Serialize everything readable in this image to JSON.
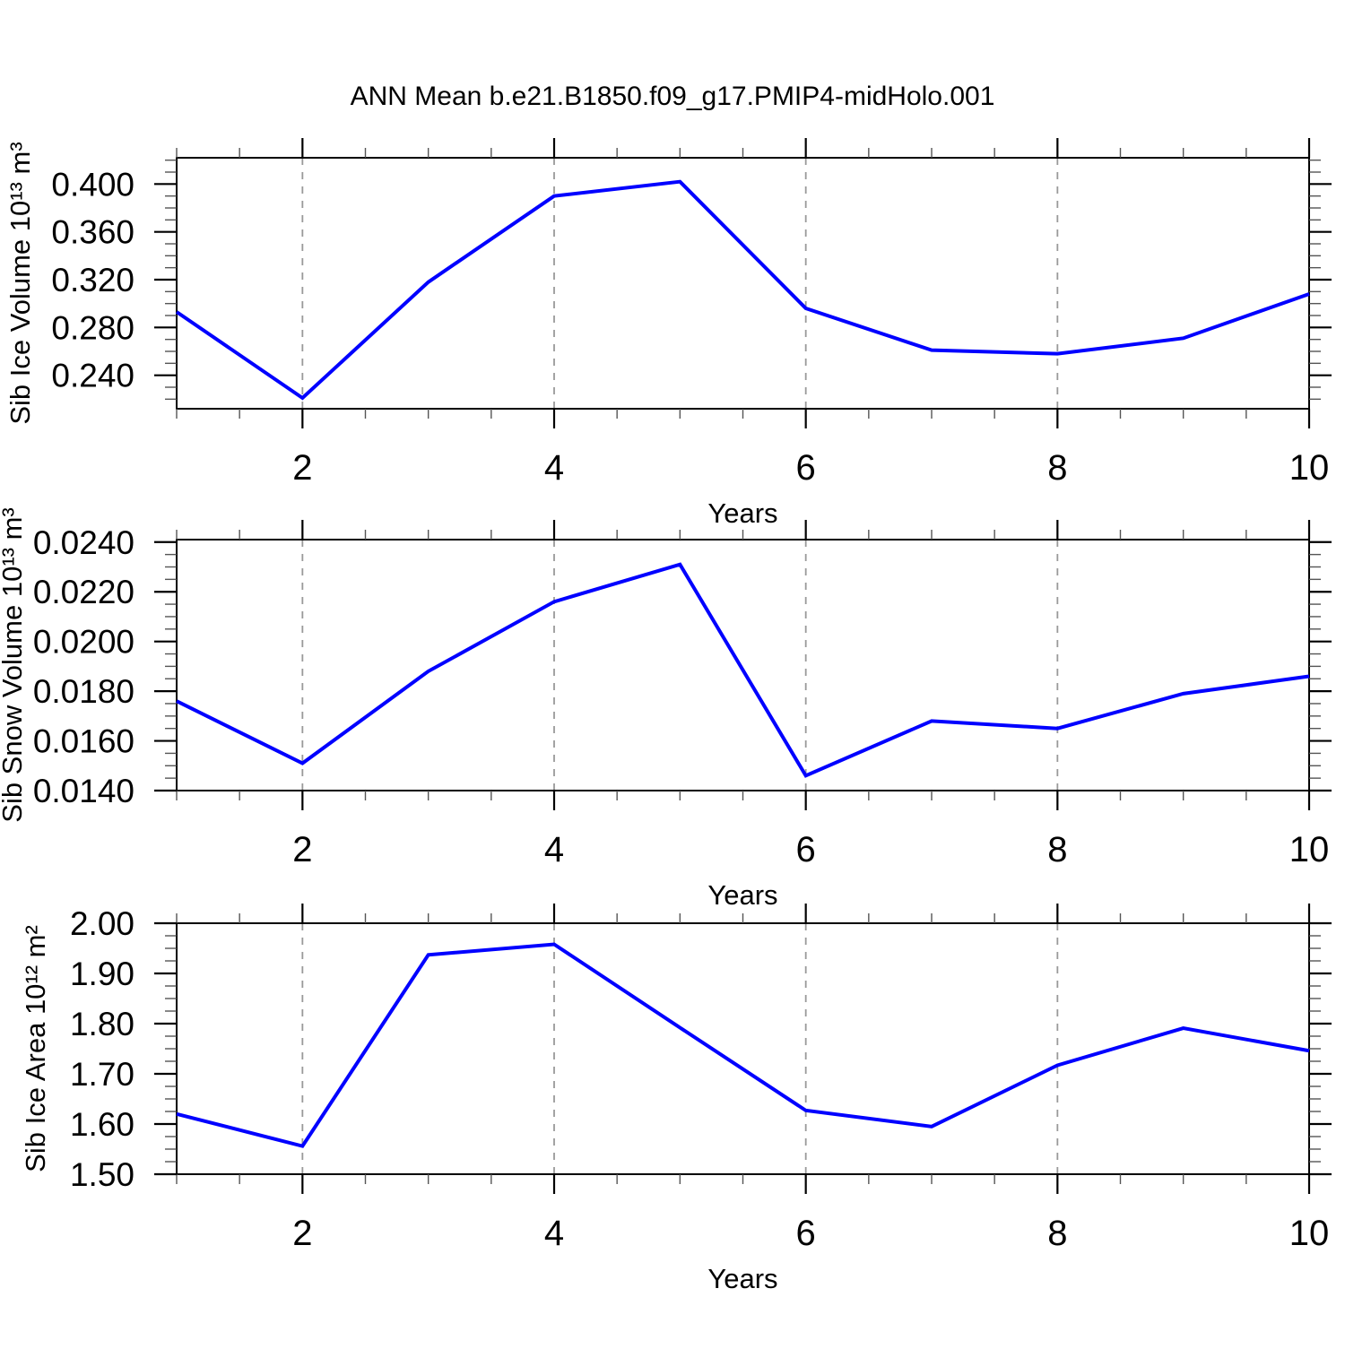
{
  "figure": {
    "title": "ANN Mean b.e21.B1850.f09_g17.PMIP4-midHolo.001",
    "background_color": "#ffffff",
    "line_color": "#0000ff",
    "grid_color": "#999999",
    "axis_color": "#000000",
    "minor_tick_color": "#555555"
  },
  "chart_data": [
    {
      "type": "line",
      "name": "Sib Ice Volume",
      "ylabel": "Sib Ice Volume 10¹³ m³",
      "xlabel": "Years",
      "x": [
        1,
        2,
        3,
        4,
        5,
        6,
        7,
        8,
        9,
        10
      ],
      "values": [
        0.293,
        0.221,
        0.318,
        0.39,
        0.402,
        0.296,
        0.261,
        0.258,
        0.271,
        0.308
      ],
      "xlim": [
        1,
        10
      ],
      "ylim": [
        0.212,
        0.422
      ],
      "xticks_major": [
        2,
        4,
        6,
        8,
        10
      ],
      "xtick_labels": [
        "2",
        "4",
        "6",
        "8",
        "10"
      ],
      "xtick_minor_step": 0.5,
      "yticks_major": [
        0.24,
        0.28,
        0.32,
        0.36,
        0.4
      ],
      "ytick_labels": [
        "0.240",
        "0.280",
        "0.320",
        "0.360",
        "0.400"
      ],
      "ytick_minor_step": 0.01,
      "grid_x": [
        2,
        4,
        6,
        8
      ],
      "grid_style": "dashed",
      "legend": "none"
    },
    {
      "type": "line",
      "name": "Sib Snow Volume",
      "ylabel": "Sib Snow Volume 10¹³ m³",
      "xlabel": "Years",
      "x": [
        1,
        2,
        3,
        4,
        5,
        6,
        7,
        8,
        9,
        10
      ],
      "values": [
        0.0176,
        0.0151,
        0.0188,
        0.0216,
        0.0231,
        0.0146,
        0.0168,
        0.0165,
        0.0179,
        0.0186
      ],
      "xlim": [
        1,
        10
      ],
      "ylim": [
        0.014,
        0.0241
      ],
      "xticks_major": [
        2,
        4,
        6,
        8,
        10
      ],
      "xtick_labels": [
        "2",
        "4",
        "6",
        "8",
        "10"
      ],
      "xtick_minor_step": 0.5,
      "yticks_major": [
        0.014,
        0.016,
        0.018,
        0.02,
        0.022,
        0.024
      ],
      "ytick_labels": [
        "0.0140",
        "0.0160",
        "0.0180",
        "0.0200",
        "0.0220",
        "0.0240"
      ],
      "ytick_minor_step": 0.0005,
      "grid_x": [
        2,
        4,
        6,
        8
      ],
      "grid_style": "dashed",
      "legend": "none"
    },
    {
      "type": "line",
      "name": "Sib Ice Area",
      "ylabel": "Sib Ice Area 10¹² m²",
      "xlabel": "Years",
      "x": [
        1,
        2,
        3,
        4,
        5,
        6,
        7,
        8,
        9,
        10
      ],
      "values": [
        1.62,
        1.556,
        1.937,
        1.958,
        1.792,
        1.627,
        1.595,
        1.717,
        1.791,
        1.746
      ],
      "xlim": [
        1,
        10
      ],
      "ylim": [
        1.5,
        2.0
      ],
      "xticks_major": [
        2,
        4,
        6,
        8,
        10
      ],
      "xtick_labels": [
        "2",
        "4",
        "6",
        "8",
        "10"
      ],
      "xtick_minor_step": 0.5,
      "yticks_major": [
        1.5,
        1.6,
        1.7,
        1.8,
        1.9,
        2.0
      ],
      "ytick_labels": [
        "1.50",
        "1.60",
        "1.70",
        "1.80",
        "1.90",
        "2.00"
      ],
      "ytick_minor_step": 0.025,
      "grid_x": [
        2,
        4,
        6,
        8
      ],
      "grid_style": "dashed",
      "legend": "none"
    }
  ]
}
